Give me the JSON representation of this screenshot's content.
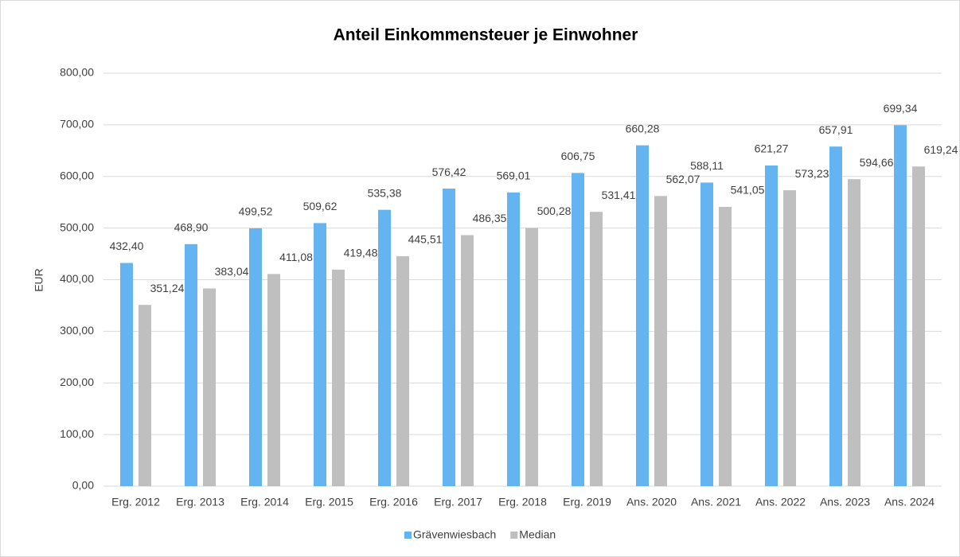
{
  "chart_data": {
    "type": "bar",
    "title": "Anteil Einkommensteuer je Einwohner",
    "y_label": "EUR",
    "categories": [
      "Erg. 2012",
      "Erg. 2013",
      "Erg. 2014",
      "Erg. 2015",
      "Erg. 2016",
      "Erg. 2017",
      "Erg. 2018",
      "Erg. 2019",
      "Ans. 2020",
      "Ans. 2021",
      "Ans. 2022",
      "Ans. 2023",
      "Ans. 2024"
    ],
    "series": [
      {
        "name": "Grävenwiesbach",
        "color": "#63b4f0",
        "values": [
          432.4,
          468.9,
          499.52,
          509.62,
          535.38,
          576.42,
          569.01,
          606.75,
          660.28,
          588.11,
          621.27,
          657.91,
          699.34
        ],
        "value_labels": [
          "432,40",
          "468,90",
          "499,52",
          "509,62",
          "535,38",
          "576,42",
          "569,01",
          "606,75",
          "660,28",
          "588,11",
          "621,27",
          "657,91",
          "699,34"
        ]
      },
      {
        "name": "Median",
        "color": "#bfbfbf",
        "values": [
          351.24,
          383.04,
          411.08,
          419.48,
          445.51,
          486.35,
          500.28,
          531.41,
          562.07,
          541.05,
          573.23,
          594.66,
          619.24
        ],
        "value_labels": [
          "351,24",
          "383,04",
          "411,08",
          "419,48",
          "445,51",
          "486,35",
          "500,28",
          "531,41",
          "562,07",
          "541,05",
          "573,23",
          "594,66",
          "619,24"
        ]
      }
    ],
    "ylim": [
      0,
      800
    ],
    "yticks": [
      {
        "value": 0,
        "label": "0,00"
      },
      {
        "value": 100,
        "label": "100,00"
      },
      {
        "value": 200,
        "label": "200,00"
      },
      {
        "value": 300,
        "label": "300,00"
      },
      {
        "value": 400,
        "label": "400,00"
      },
      {
        "value": 500,
        "label": "500,00"
      },
      {
        "value": 600,
        "label": "600,00"
      },
      {
        "value": 700,
        "label": "700,00"
      },
      {
        "value": 800,
        "label": "800,00"
      }
    ],
    "grid": true,
    "legend": "bottom"
  }
}
